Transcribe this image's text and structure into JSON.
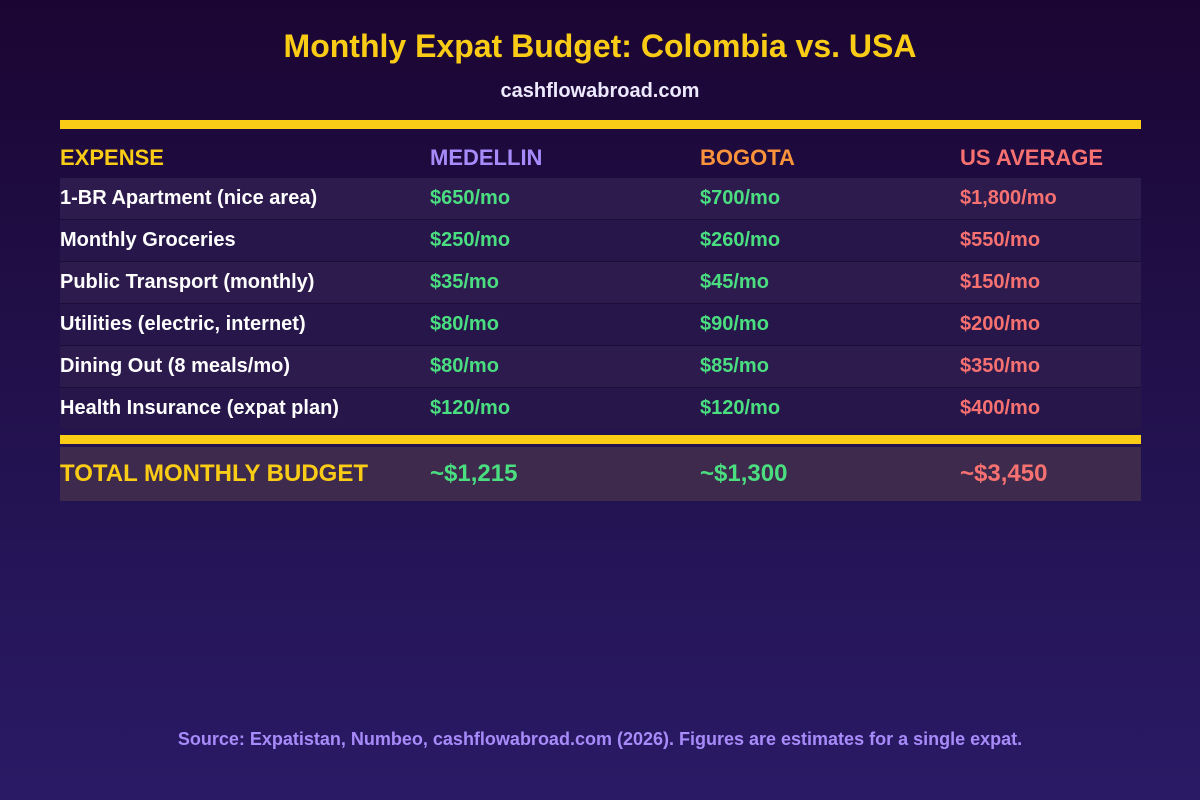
{
  "header": {
    "title": "Monthly Expat Budget: Colombia vs. USA",
    "subtitle": "cashflowabroad.com"
  },
  "chart_data": {
    "type": "table",
    "columns": [
      "EXPENSE",
      "MEDELLIN",
      "BOGOTA",
      "US AVERAGE"
    ],
    "rows": [
      {
        "label": "1-BR Apartment (nice area)",
        "values": [
          "$650/mo",
          "$700/mo",
          "$1,800/mo"
        ]
      },
      {
        "label": "Monthly Groceries",
        "values": [
          "$250/mo",
          "$260/mo",
          "$550/mo"
        ]
      },
      {
        "label": "Public Transport (monthly)",
        "values": [
          "$35/mo",
          "$45/mo",
          "$150/mo"
        ]
      },
      {
        "label": "Utilities (electric, internet)",
        "values": [
          "$80/mo",
          "$90/mo",
          "$200/mo"
        ]
      },
      {
        "label": "Dining Out (8 meals/mo)",
        "values": [
          "$80/mo",
          "$85/mo",
          "$350/mo"
        ]
      },
      {
        "label": "Health Insurance (expat plan)",
        "values": [
          "$120/mo",
          "$120/mo",
          "$400/mo"
        ]
      }
    ],
    "total": {
      "label": "TOTAL MONTHLY BUDGET",
      "values": [
        "~$1,215",
        "~$1,300",
        "~$3,450"
      ]
    }
  },
  "colors": {
    "accent": "#facc15",
    "medellin": "#a78bfa",
    "bogota": "#fb923c",
    "us": "#f87171",
    "colombia_value": "#4ade80"
  },
  "footer": {
    "source": "Source: Expatistan, Numbeo, cashflowabroad.com (2026). Figures are estimates for a single expat."
  }
}
